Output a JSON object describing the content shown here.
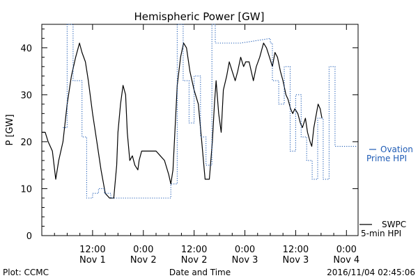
{
  "chart_data": {
    "type": "line",
    "title": "Hemispheric Power [GW]",
    "xlabel": "Date and Time",
    "ylabel": "P [GW]",
    "ylim": [
      0,
      45
    ],
    "xlim": [
      "2016-11-01 00:00",
      "2016-11-04 02:45"
    ],
    "grid": false,
    "legend_position": "right",
    "y_ticks": [
      0,
      10,
      20,
      30,
      40
    ],
    "x_ticks": [
      {
        "t": 12,
        "time": "12:00",
        "date": "Nov 1"
      },
      {
        "t": 24,
        "time": "0:00",
        "date": "Nov 2"
      },
      {
        "t": 36,
        "time": "12:00",
        "date": "Nov 2"
      },
      {
        "t": 48,
        "time": "0:00",
        "date": "Nov 3"
      },
      {
        "t": 60,
        "time": "12:00",
        "date": "Nov 3"
      },
      {
        "t": 72,
        "time": "0:00",
        "date": "Nov 4"
      }
    ],
    "series": [
      {
        "name": "SWPC 5-min HPI",
        "style": "solid",
        "color": "#000000",
        "points": [
          [
            0,
            22
          ],
          [
            0.8,
            22
          ],
          [
            1.5,
            20
          ],
          [
            2.5,
            18
          ],
          [
            3.3,
            12
          ],
          [
            4,
            16
          ],
          [
            5,
            20
          ],
          [
            6,
            28
          ],
          [
            7,
            34
          ],
          [
            8,
            38
          ],
          [
            8.9,
            41
          ],
          [
            9.5,
            39
          ],
          [
            10.3,
            37
          ],
          [
            11,
            33
          ],
          [
            12,
            26
          ],
          [
            13,
            20
          ],
          [
            14,
            14
          ],
          [
            15,
            9
          ],
          [
            16,
            8
          ],
          [
            17,
            8
          ],
          [
            17.7,
            15
          ],
          [
            18,
            22
          ],
          [
            18.6,
            28
          ],
          [
            19.2,
            32
          ],
          [
            19.8,
            30
          ],
          [
            20.2,
            22
          ],
          [
            20.8,
            16
          ],
          [
            21.4,
            17
          ],
          [
            22,
            15
          ],
          [
            22.7,
            14
          ],
          [
            23,
            16
          ],
          [
            23.6,
            18
          ],
          [
            25,
            18
          ],
          [
            27,
            18
          ],
          [
            28,
            17
          ],
          [
            29,
            16
          ],
          [
            30,
            13
          ],
          [
            30.5,
            11
          ],
          [
            31,
            14
          ],
          [
            32,
            32
          ],
          [
            32.8,
            38
          ],
          [
            33.5,
            41
          ],
          [
            34.2,
            40
          ],
          [
            35,
            35
          ],
          [
            36,
            31
          ],
          [
            37,
            28
          ],
          [
            37.8,
            20
          ],
          [
            38.6,
            12
          ],
          [
            39.6,
            12
          ],
          [
            40.3,
            20
          ],
          [
            40.8,
            28
          ],
          [
            41.2,
            33
          ],
          [
            41.8,
            26
          ],
          [
            42.4,
            22
          ],
          [
            42.9,
            31
          ],
          [
            43.7,
            34
          ],
          [
            44.3,
            37
          ],
          [
            45,
            35
          ],
          [
            45.7,
            33
          ],
          [
            46.3,
            35
          ],
          [
            47,
            38
          ],
          [
            47.7,
            36
          ],
          [
            48.2,
            37
          ],
          [
            49,
            37
          ],
          [
            50,
            33
          ],
          [
            50.7,
            36
          ],
          [
            51.5,
            38
          ],
          [
            52.4,
            41
          ],
          [
            53.1,
            40
          ],
          [
            53.8,
            38
          ],
          [
            54.5,
            36
          ],
          [
            55.1,
            39
          ],
          [
            55.7,
            38
          ],
          [
            56.4,
            35
          ],
          [
            57,
            33
          ],
          [
            57.7,
            30
          ],
          [
            58.2,
            29
          ],
          [
            58.8,
            27
          ],
          [
            59.3,
            26
          ],
          [
            59.8,
            27
          ],
          [
            60.5,
            26
          ],
          [
            61.1,
            24
          ],
          [
            61.6,
            23
          ],
          [
            62.3,
            25
          ],
          [
            62.8,
            22
          ],
          [
            63.4,
            20
          ],
          [
            63.8,
            19
          ],
          [
            64.3,
            23
          ],
          [
            64.9,
            26
          ],
          [
            65.3,
            28
          ],
          [
            65.8,
            27
          ],
          [
            66.2,
            25
          ]
        ]
      },
      {
        "name": "Ovation Prime HPI",
        "style": "dotted",
        "color": "#1e5bb5",
        "points": [
          [
            5,
            23
          ],
          [
            6,
            23
          ],
          [
            6,
            45
          ],
          [
            7.4,
            45
          ],
          [
            7.4,
            33
          ],
          [
            9.5,
            33
          ],
          [
            9.5,
            21
          ],
          [
            10.6,
            21
          ],
          [
            10.6,
            8
          ],
          [
            12,
            8
          ],
          [
            12,
            9
          ],
          [
            13.4,
            9
          ],
          [
            13.4,
            10
          ],
          [
            14.8,
            10
          ],
          [
            14.8,
            9
          ],
          [
            16.3,
            9
          ],
          [
            16.3,
            8
          ],
          [
            30.5,
            8
          ],
          [
            30.5,
            11
          ],
          [
            32,
            11
          ],
          [
            32,
            45
          ],
          [
            33.4,
            45
          ],
          [
            33.4,
            33
          ],
          [
            34.8,
            33
          ],
          [
            34.8,
            24
          ],
          [
            36,
            24
          ],
          [
            36,
            34
          ],
          [
            37.5,
            34
          ],
          [
            37.5,
            21
          ],
          [
            38.8,
            21
          ],
          [
            38.8,
            15
          ],
          [
            40.2,
            15
          ],
          [
            40.2,
            45
          ],
          [
            41,
            45
          ],
          [
            41,
            41
          ],
          [
            47,
            41
          ],
          [
            54,
            42
          ],
          [
            54,
            41
          ],
          [
            54.5,
            41
          ],
          [
            54.5,
            33
          ],
          [
            56,
            33
          ],
          [
            56,
            28
          ],
          [
            57.3,
            28
          ],
          [
            57.3,
            36
          ],
          [
            58.7,
            36
          ],
          [
            58.7,
            18
          ],
          [
            60,
            18
          ],
          [
            60,
            30
          ],
          [
            61.3,
            30
          ],
          [
            61.3,
            21
          ],
          [
            62.6,
            21
          ],
          [
            62.6,
            16
          ],
          [
            63.9,
            16
          ],
          [
            63.9,
            12
          ],
          [
            65.2,
            12
          ],
          [
            65.2,
            25
          ],
          [
            66.5,
            25
          ],
          [
            66.5,
            12
          ],
          [
            67.9,
            12
          ],
          [
            67.9,
            36
          ],
          [
            69.3,
            36
          ],
          [
            69.3,
            19
          ],
          [
            74.5,
            19
          ]
        ]
      }
    ],
    "legend": {
      "ovation_line1": "Ovation",
      "ovation_line2": "Prime HPI",
      "swpc_line1": "SWPC",
      "swpc_line2": "5-min HPI"
    }
  },
  "footer": {
    "left": "Plot: CCMC",
    "center": "Date and Time",
    "right": "2016/11/04 02:45:06"
  }
}
